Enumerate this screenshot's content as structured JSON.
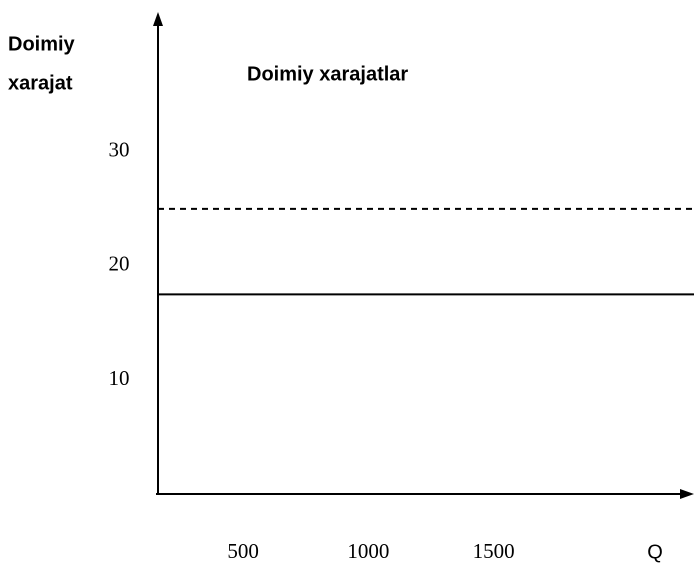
{
  "chart_data": {
    "type": "line",
    "title": "Doimiy xarajatlar",
    "ylabel": [
      "Doimiy",
      "xarajat"
    ],
    "xlabel": "Q",
    "x": [
      160,
      2300
    ],
    "series": [
      {
        "color": "#000000",
        "style": "dashed",
        "values": [
          25,
          25
        ]
      },
      {
        "color": "#000000",
        "style": "solid",
        "values": [
          17.5,
          17.5
        ]
      }
    ],
    "xlim": [
      160,
      2300
    ],
    "xticks": [
      500,
      1000,
      1500
    ],
    "ylim": [
      0,
      42
    ],
    "yticks": [
      10,
      20,
      30
    ],
    "grid": false
  }
}
